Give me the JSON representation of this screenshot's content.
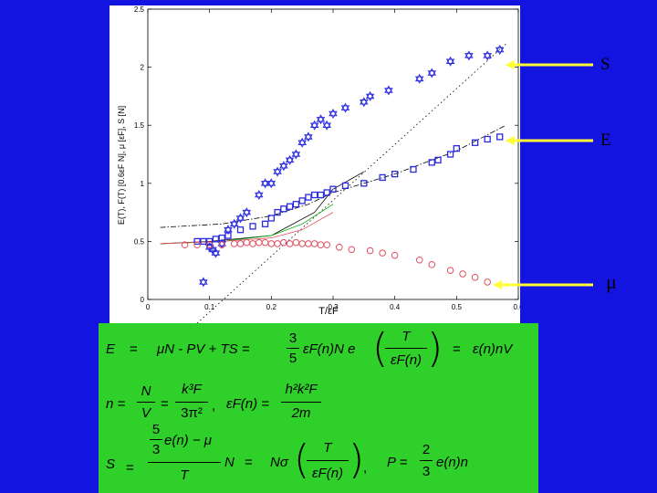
{
  "chart_data": {
    "type": "scatter",
    "xlabel": "T/εF",
    "ylabel": "E(T), F(T) [0.6εF N], μ [εF], S [N]",
    "xlim": [
      0,
      0.6
    ],
    "ylim": [
      0,
      2.5
    ],
    "x_ticks": [
      "0",
      "0.1",
      "0.2",
      "0.3",
      "0.4",
      "0.5",
      "0.6"
    ],
    "y_ticks": [
      "0",
      "0.5",
      "1",
      "1.5",
      "2",
      "2.5"
    ],
    "series": [
      {
        "name": "S",
        "marker": "star",
        "color": "#2a2ae0",
        "x": [
          0.09,
          0.1,
          0.105,
          0.11,
          0.12,
          0.13,
          0.14,
          0.15,
          0.16,
          0.18,
          0.19,
          0.2,
          0.21,
          0.22,
          0.23,
          0.24,
          0.25,
          0.26,
          0.27,
          0.28,
          0.29,
          0.3,
          0.32,
          0.35,
          0.36,
          0.39,
          0.44,
          0.46,
          0.49,
          0.52,
          0.55,
          0.57
        ],
        "y": [
          0.15,
          0.45,
          0.43,
          0.4,
          0.48,
          0.6,
          0.65,
          0.7,
          0.75,
          0.9,
          1.0,
          1.0,
          1.1,
          1.15,
          1.2,
          1.25,
          1.35,
          1.4,
          1.5,
          1.55,
          1.5,
          1.6,
          1.65,
          1.7,
          1.75,
          1.8,
          1.9,
          1.95,
          2.05,
          2.1,
          2.1,
          2.15
        ]
      },
      {
        "name": "E",
        "marker": "square",
        "color": "#2a2ae0",
        "x": [
          0.08,
          0.09,
          0.1,
          0.11,
          0.12,
          0.13,
          0.15,
          0.17,
          0.19,
          0.2,
          0.21,
          0.22,
          0.23,
          0.24,
          0.25,
          0.26,
          0.27,
          0.28,
          0.29,
          0.3,
          0.32,
          0.35,
          0.38,
          0.4,
          0.43,
          0.46,
          0.47,
          0.49,
          0.5,
          0.53,
          0.55,
          0.57
        ],
        "y": [
          0.5,
          0.5,
          0.5,
          0.52,
          0.53,
          0.55,
          0.6,
          0.63,
          0.65,
          0.7,
          0.75,
          0.78,
          0.8,
          0.82,
          0.85,
          0.88,
          0.9,
          0.9,
          0.92,
          0.95,
          0.98,
          1.0,
          1.05,
          1.08,
          1.12,
          1.18,
          1.2,
          1.25,
          1.3,
          1.35,
          1.38,
          1.4
        ]
      },
      {
        "name": "μ",
        "marker": "circle",
        "color": "#e05060",
        "x": [
          0.06,
          0.08,
          0.1,
          0.12,
          0.14,
          0.15,
          0.16,
          0.17,
          0.18,
          0.19,
          0.2,
          0.21,
          0.22,
          0.23,
          0.24,
          0.25,
          0.26,
          0.27,
          0.28,
          0.29,
          0.31,
          0.33,
          0.36,
          0.38,
          0.4,
          0.44,
          0.46,
          0.49,
          0.51,
          0.53,
          0.55
        ],
        "y": [
          0.47,
          0.47,
          0.47,
          0.47,
          0.48,
          0.48,
          0.49,
          0.48,
          0.49,
          0.49,
          0.48,
          0.48,
          0.49,
          0.48,
          0.49,
          0.48,
          0.48,
          0.48,
          0.47,
          0.47,
          0.45,
          0.43,
          0.42,
          0.4,
          0.38,
          0.34,
          0.3,
          0.25,
          0.22,
          0.19,
          0.15
        ]
      }
    ],
    "reference_lines": [
      {
        "style": "dotted",
        "color": "#000000",
        "x": [
          0.06,
          0.58
        ],
        "y": [
          -0.3,
          2.2
        ]
      },
      {
        "style": "dashdot",
        "color": "#000000",
        "x": [
          0.02,
          0.12,
          0.2,
          0.26,
          0.3,
          0.4,
          0.5,
          0.58
        ],
        "y": [
          0.62,
          0.65,
          0.72,
          0.82,
          0.92,
          1.08,
          1.28,
          1.5
        ]
      },
      {
        "style": "solid",
        "color": "#000000",
        "x": [
          0.02,
          0.1,
          0.2,
          0.27,
          0.3,
          0.35
        ],
        "y": [
          0.48,
          0.5,
          0.55,
          0.75,
          0.95,
          1.1
        ]
      },
      {
        "style": "solid",
        "color": "#00aa00",
        "x": [
          0.02,
          0.12,
          0.2,
          0.25,
          0.3
        ],
        "y": [
          0.48,
          0.5,
          0.55,
          0.65,
          0.82
        ]
      },
      {
        "style": "solid",
        "color": "#e05060",
        "x": [
          0.02,
          0.12,
          0.2,
          0.25,
          0.3
        ],
        "y": [
          0.48,
          0.5,
          0.53,
          0.6,
          0.75
        ]
      }
    ]
  },
  "callouts": [
    {
      "label": "S",
      "target_series": "S"
    },
    {
      "label": "E",
      "target_series": "E"
    },
    {
      "label": "μ",
      "target_series": "μ"
    }
  ],
  "colors": {
    "background": "#1414e0",
    "plot_panel": "#ffffff",
    "formula_panel": "#2fd02a",
    "arrow": "#ffff33"
  },
  "formulas": {
    "energy": {
      "lhs": "E",
      "eq1": "=",
      "mid": "μN - PV + TS =",
      "coef_num": "3",
      "coef_den": "5",
      "term": "εF(n)N  e",
      "T": "T",
      "epsF": "εF(n)",
      "eq2": "=",
      "rhs": "ε(n)nV"
    },
    "density": {
      "lhs": "n =",
      "N": "N",
      "V": "V",
      "eq": "=",
      "kF3": "k³F",
      "pi": "3π²",
      "comma": ",",
      "epsF_lhs": "εF(n) =",
      "hk": "h²k²F",
      "twom": "2m"
    },
    "entropy": {
      "lhs": "S",
      "eq1": "=",
      "num_coef_top": "5",
      "num_coef_bot": "3",
      "num_rest": "e(n) − μ",
      "den": "T",
      "N": "N",
      "eq2": "=",
      "Nsigma": "Nσ",
      "T": "T",
      "epsF": "εF(n)",
      "comma": ",",
      "P_lhs": "P =",
      "p_num": "2",
      "p_den": "3",
      "p_rest": "e(n)n"
    }
  }
}
